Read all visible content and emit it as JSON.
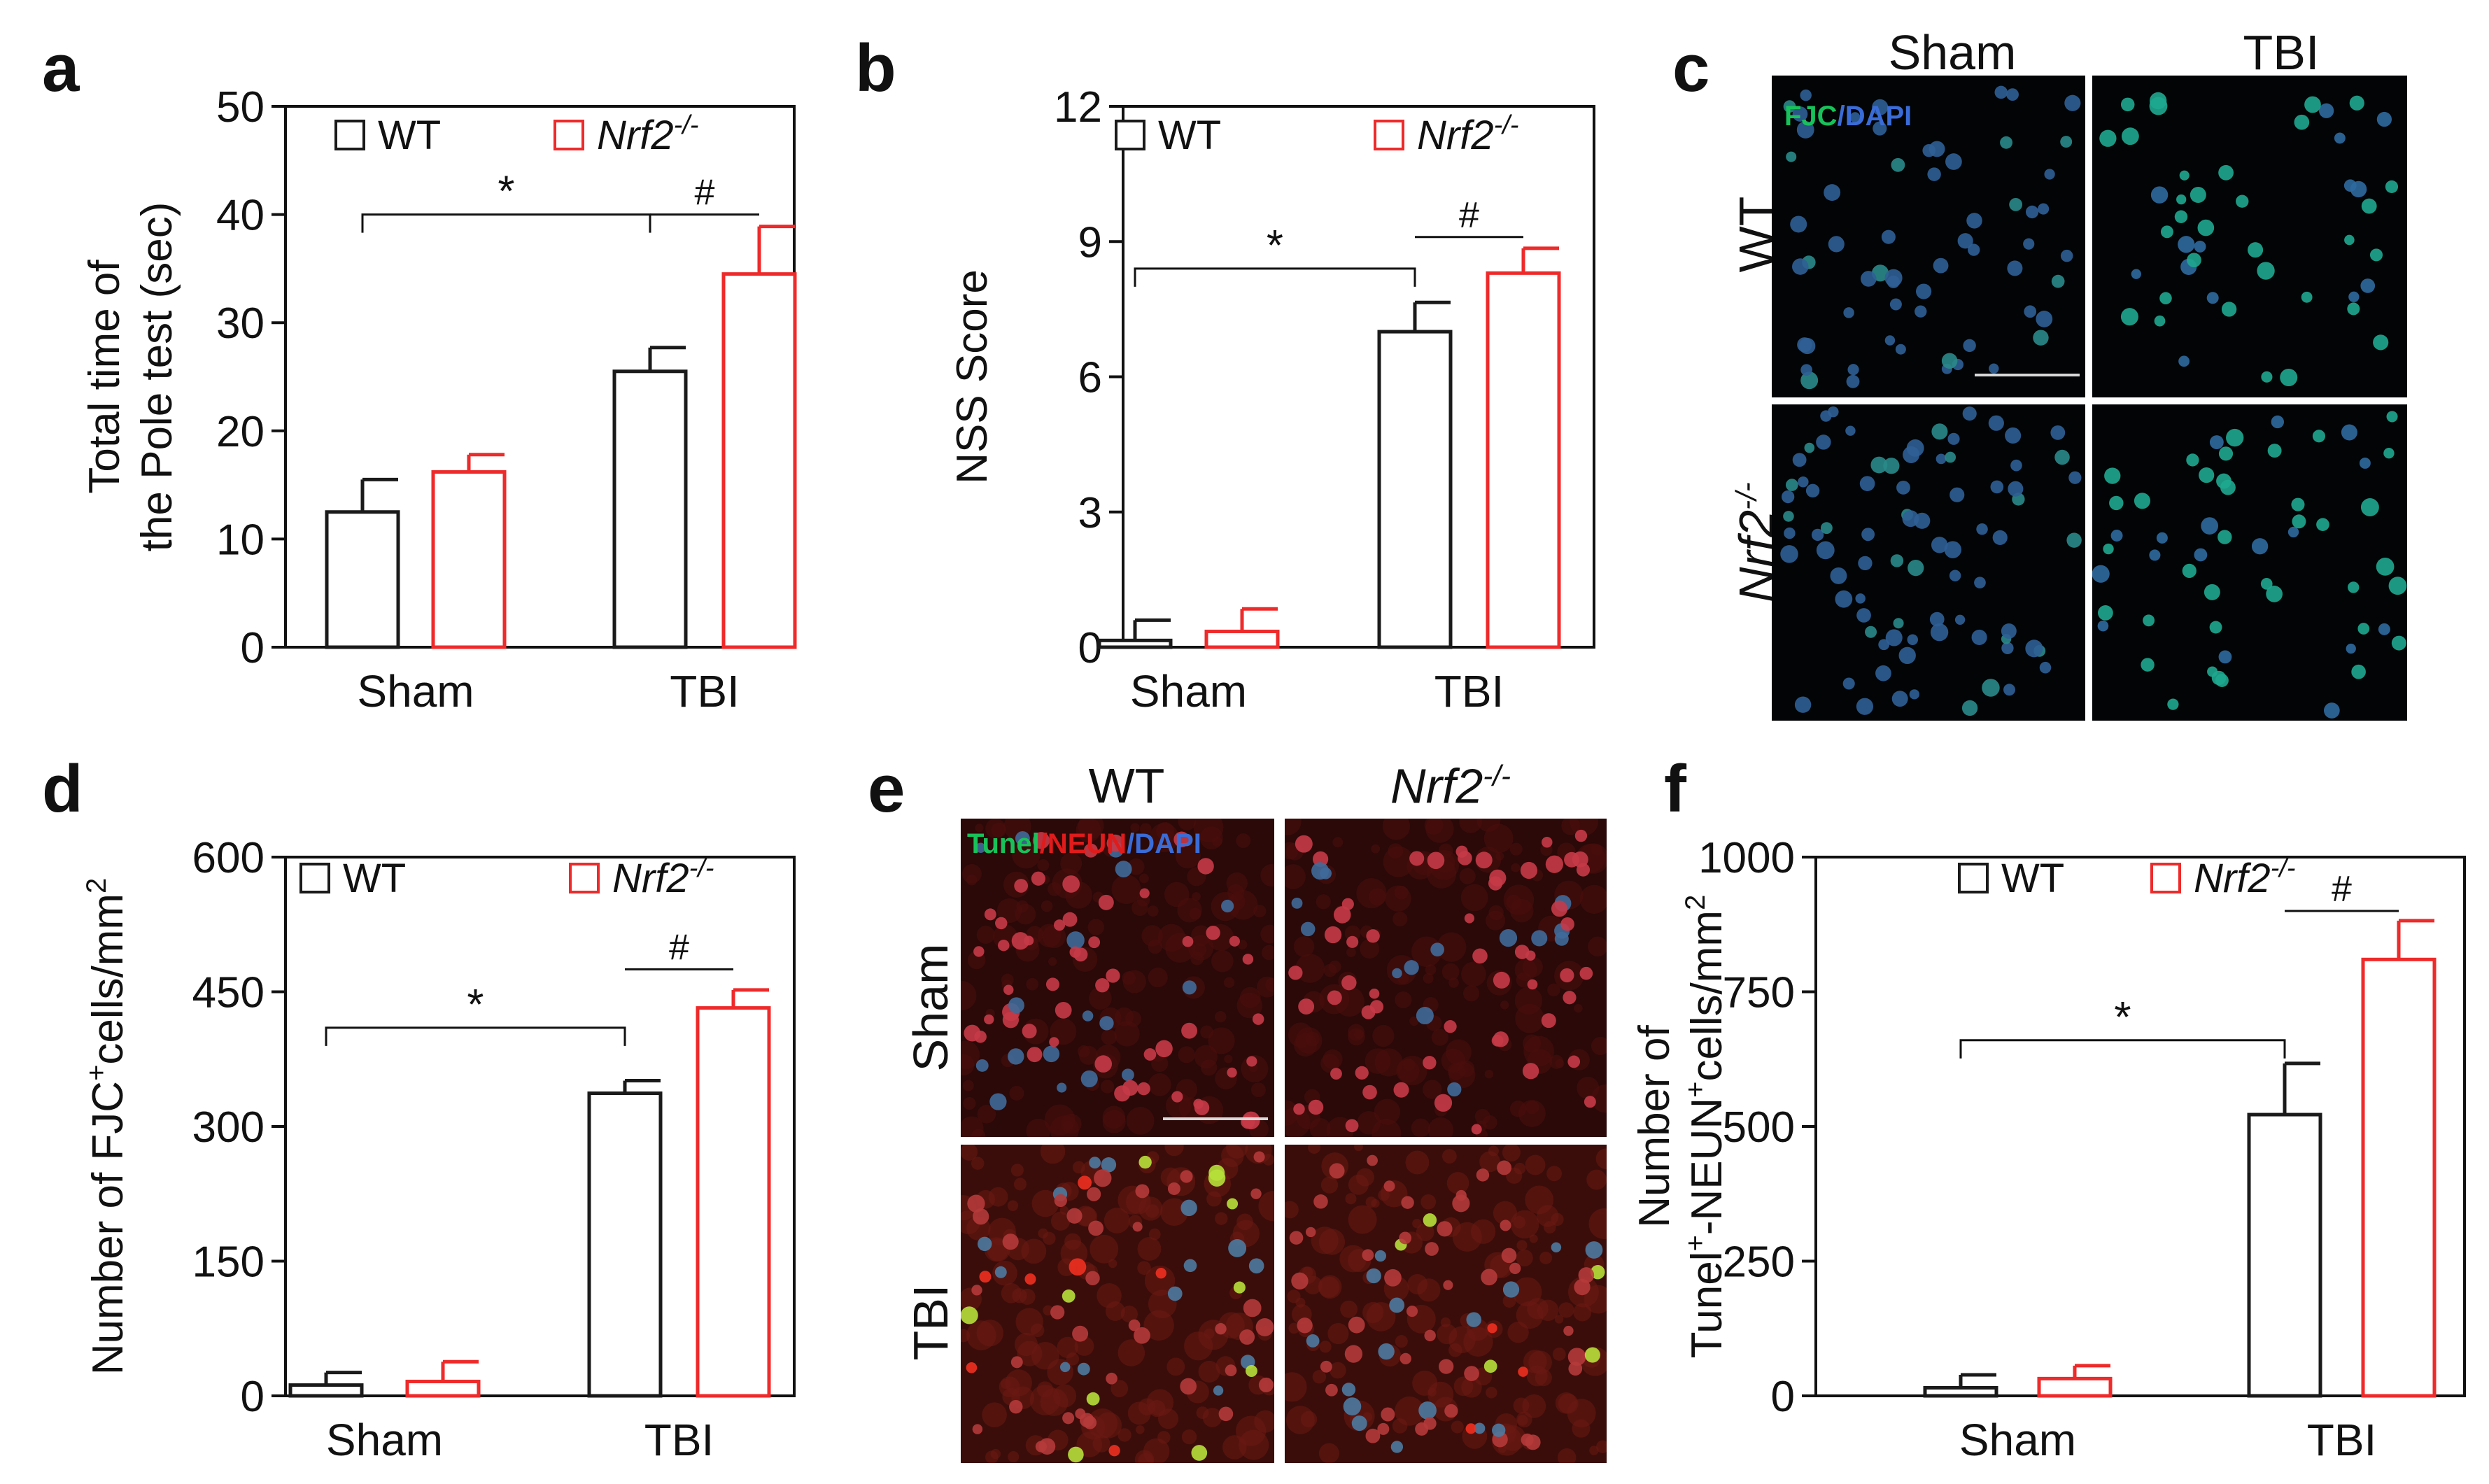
{
  "panel_labels": [
    "a",
    "b",
    "c",
    "d",
    "e",
    "f"
  ],
  "colors": {
    "wt": "#1a1a1a",
    "nrf2": "#ee2a2a",
    "fjc_green": "#18c25a",
    "dapi_blue": "#3a6cd8",
    "neun_red": "#e01b1b"
  },
  "legend": {
    "wt": "WT",
    "nrf2_main": "Nrf2",
    "nrf2_sup": "-/-"
  },
  "chart_data": [
    {
      "id": "a",
      "type": "bar",
      "categories": [
        "Sham",
        "TBI"
      ],
      "ylabel_line1": "Total time of",
      "ylabel_line2": "the Pole test (sec)",
      "ylim": [
        0,
        50
      ],
      "yticks": [
        "0",
        "10",
        "20",
        "30",
        "40",
        "50"
      ],
      "series": [
        {
          "name": "WT",
          "values": [
            12.5,
            25.5
          ],
          "errors": [
            3.0,
            2.2
          ]
        },
        {
          "name": "Nrf2-/-",
          "values": [
            16.2,
            34.5
          ],
          "errors": [
            1.6,
            4.4
          ]
        }
      ],
      "annotations": [
        {
          "symbol": "*",
          "from": "WT Sham",
          "to": "WT TBI",
          "y": 40
        },
        {
          "symbol": "#",
          "from": "WT TBI",
          "to": "Nrf2-/- TBI",
          "y": 40
        }
      ]
    },
    {
      "id": "b",
      "type": "bar",
      "categories": [
        "Sham",
        "TBI"
      ],
      "ylabel_line1": "NSS Score",
      "ylabel_line2": "",
      "ylim": [
        0,
        12
      ],
      "yticks": [
        "0",
        "3",
        "6",
        "9",
        "12"
      ],
      "series": [
        {
          "name": "WT",
          "values": [
            0.15,
            7.0
          ],
          "errors": [
            0.45,
            0.65
          ]
        },
        {
          "name": "Nrf2-/-",
          "values": [
            0.35,
            8.3
          ],
          "errors": [
            0.5,
            0.55
          ]
        }
      ],
      "annotations": [
        {
          "symbol": "*",
          "from": "WT Sham",
          "to": "WT TBI",
          "y": 8.4
        },
        {
          "symbol": "#",
          "from": "WT TBI",
          "to": "Nrf2-/- TBI",
          "y": 9.1
        }
      ]
    },
    {
      "id": "d",
      "type": "bar",
      "categories": [
        "Sham",
        "TBI"
      ],
      "ylabel_line1": "Number of FJC",
      "ylabel_sup": "+",
      "ylabel_rest": "cells/mm",
      "ylabel_sup2": "2",
      "ylabel_line2": "",
      "ylim": [
        0,
        600
      ],
      "yticks": [
        "0",
        "150",
        "300",
        "450",
        "600"
      ],
      "series": [
        {
          "name": "WT",
          "values": [
            12,
            337
          ],
          "errors": [
            14,
            14
          ]
        },
        {
          "name": "Nrf2-/-",
          "values": [
            16,
            432
          ],
          "errors": [
            22,
            20
          ]
        }
      ],
      "annotations": [
        {
          "symbol": "*",
          "from": "WT Sham",
          "to": "WT TBI",
          "y": 410
        },
        {
          "symbol": "#",
          "from": "WT TBI",
          "to": "Nrf2-/- TBI",
          "y": 475
        }
      ]
    },
    {
      "id": "f",
      "type": "bar",
      "categories": [
        "Sham",
        "TBI"
      ],
      "ylabel_line1": "Number of",
      "ylabel_line2_a": "Tunel",
      "ylabel_line2_b": "-NEUN",
      "ylabel_line2_c": "cells/mm",
      "sup_plus": "+",
      "sup_two": "2",
      "ylim": [
        0,
        1000
      ],
      "yticks": [
        "0",
        "250",
        "500",
        "750",
        "1000"
      ],
      "series": [
        {
          "name": "WT",
          "values": [
            15,
            522
          ],
          "errors": [
            24,
            95
          ]
        },
        {
          "name": "Nrf2-/-",
          "values": [
            32,
            810
          ],
          "errors": [
            24,
            72
          ]
        }
      ],
      "annotations": [
        {
          "symbol": "*",
          "from": "WT Sham",
          "to": "WT TBI",
          "y": 660
        },
        {
          "symbol": "#",
          "from": "WT TBI",
          "to": "Nrf2-/- TBI",
          "y": 900
        }
      ]
    }
  ],
  "panel_c": {
    "col1": "Sham",
    "col2": "TBI",
    "row1": "WT",
    "row2_main": "Nrf2",
    "row2_sup": "-/-",
    "stain_fjc": "FJC",
    "stain_sep": "/",
    "stain_dapi": "DAPI"
  },
  "panel_e": {
    "col1": "WT",
    "col2_main": "Nrf2",
    "col2_sup": "-/-",
    "row1": "Sham",
    "row2": "TBI",
    "stain_tunel": "Tunel",
    "stain_sep": "/",
    "stain_neun": "NEUN",
    "stain_dapi": "DAPI"
  }
}
